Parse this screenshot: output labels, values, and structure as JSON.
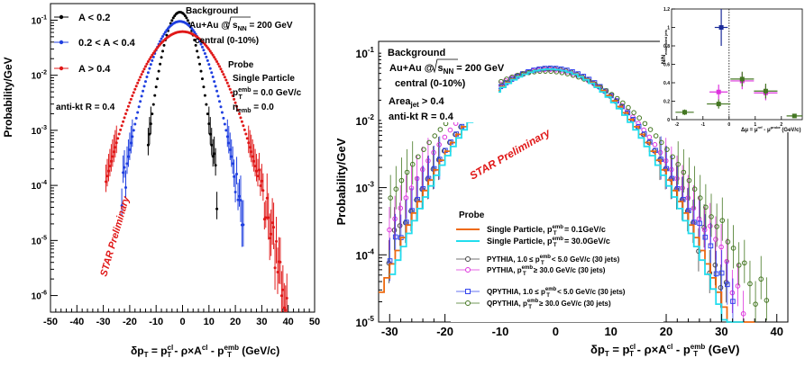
{
  "left_panel": {
    "legend": [
      "A < 0.2",
      "0.2 < A < 0.4",
      "A > 0.4"
    ],
    "legend_colors": [
      "#000000",
      "#1f3fe0",
      "#e01818"
    ],
    "background_title": "Background",
    "system_prefix": "Au+Au @",
    "system_sqrt": "s",
    "system_sub": "NN",
    "system_suffix": " = 200 GeV",
    "centrality": "central (0-10%)",
    "probe_title": "Probe",
    "probe_type": "Single Particle",
    "probe_pt": "p",
    "probe_pt_sup": "emb",
    "probe_pt_sub": "T",
    "probe_pt_val": " = 0.0 GeV/c",
    "probe_eta": "η",
    "probe_eta_sub": "emb",
    "probe_eta_val": " = 0.0",
    "algo": "anti-kt   R = 0.4",
    "watermark": "STAR Preliminary",
    "ylabel": "Probability/GeV",
    "xlabel_parts": [
      "δp",
      "T",
      " = p",
      "cl",
      "T",
      " - ρ×A",
      "cl",
      " - p",
      "emb",
      "T",
      " (GeV/c)"
    ],
    "x_ticks": [
      "-50",
      "-40",
      "-30",
      "-20",
      "-10",
      "0",
      "10",
      "20",
      "30",
      "40",
      "50"
    ],
    "y_ticks": [
      {
        "base": "10",
        "exp": "-1"
      },
      {
        "base": "10",
        "exp": "-2"
      },
      {
        "base": "10",
        "exp": "-3"
      },
      {
        "base": "10",
        "exp": "-4"
      },
      {
        "base": "10",
        "exp": "-5"
      },
      {
        "base": "10",
        "exp": "-6"
      }
    ]
  },
  "right_panel": {
    "background_title": "Background",
    "system_prefix": "Au+Au @",
    "system_sqrt": "s",
    "system_sub": "NN",
    "system_suffix": " = 200 GeV",
    "centrality": "central (0-10%)",
    "area_cut_a": "Area",
    "area_cut_sub": "jet",
    "area_cut_b": " > 0.4",
    "algo": "anti-kt   R = 0.4",
    "watermark": "STAR Preliminary",
    "ylabel": "Probability/GeV",
    "xlabel_parts": [
      "δp",
      "T",
      " = p",
      "cl",
      "T",
      " - ρ×A",
      "cl",
      " - p",
      "emb",
      "T",
      " (GeV)"
    ],
    "x_ticks": [
      "-30",
      "-20",
      "-10",
      "0",
      "10",
      "20",
      "30",
      "40"
    ],
    "y_ticks": [
      {
        "base": "10",
        "exp": "-1"
      },
      {
        "base": "10",
        "exp": "-2"
      },
      {
        "base": "10",
        "exp": "-3"
      },
      {
        "base": "10",
        "exp": "-4"
      },
      {
        "base": "10",
        "exp": "-5"
      }
    ],
    "legend_title": "Probe",
    "legend": [
      {
        "a": "Single Particle, p",
        "sup": "emb",
        "sub": "T",
        "b": " = 0.1GeV/c",
        "color": "#ee6a10",
        "kind": "line"
      },
      {
        "a": "Single Particle, p",
        "sup": "emb",
        "sub": "T",
        "b": " = 30.0GeV/c",
        "color": "#22ddee",
        "kind": "line"
      },
      {
        "a": "PYTHIA, 1.0 ≤  p",
        "sup": "emb",
        "sub": "T",
        "b": " < 5.0 GeV/c (30 jets)",
        "color": "#444444",
        "kind": "open"
      },
      {
        "a": "PYTHIA, p",
        "sup": "emb",
        "sub": "T",
        "b": " ≥ 30.0 GeV/c (30 jets)",
        "color": "#dd33dd",
        "kind": "open"
      },
      {
        "a": "QPYTHIA, 1.0 ≤  p",
        "sup": "emb",
        "sub": "T",
        "b": " < 5.0 GeV/c (30 jets)",
        "color": "#3344ee",
        "kind": "openbox"
      },
      {
        "a": "QPYTHIA, p",
        "sup": "emb",
        "sub": "T",
        "b": " ≥ 30.0 GeV/c (30 jets)",
        "color": "#447722",
        "kind": "open"
      }
    ]
  },
  "inset": {
    "ylabel": "N/N",
    "ylabel_sub": "embedded jets",
    "xlabel": "Δμ = μ",
    "xlabel_sup1": "ref",
    "xlabel_mid": " - μ",
    "xlabel_sup2": "probe",
    "xlabel_end": " (GeV/c)",
    "x_ticks": [
      "-2",
      "-1",
      "0",
      "1",
      "2"
    ],
    "y_ticks": [
      "0",
      "0.2",
      "0.4",
      "0.6",
      "0.8",
      "1",
      "1.2"
    ]
  },
  "chart_data": [
    {
      "type": "scatter",
      "title": "",
      "xlabel": "δpT = pT^cl - ρ×A^cl - pT^emb (GeV/c)",
      "ylabel": "Probability/GeV",
      "xlim": [
        -50,
        50
      ],
      "ylim": [
        5e-07,
        0.2
      ],
      "yscale": "log",
      "grid": false,
      "legend_position": "top-left",
      "series": [
        {
          "name": "A < 0.2",
          "color": "#000000",
          "mean": -1,
          "sigma": 3.6,
          "peak": 0.14,
          "x_range": [
            -13,
            13
          ]
        },
        {
          "name": "0.2 < A < 0.4",
          "color": "#1f3fe0",
          "mean": -1,
          "sigma": 5.8,
          "peak": 0.095,
          "x_range": [
            -23,
            23
          ]
        },
        {
          "name": "A > 0.4",
          "color": "#e01818",
          "mean": 0,
          "sigma": 8.2,
          "peak": 0.062,
          "x_range": [
            -29,
            45
          ]
        }
      ]
    },
    {
      "type": "line",
      "title": "",
      "xlabel": "δpT = pT^cl - ρ×A^cl - pT^emb (GeV)",
      "ylabel": "Probability/GeV",
      "xlim": [
        -32,
        42
      ],
      "ylim": [
        1e-05,
        0.15
      ],
      "yscale": "log",
      "grid": false,
      "legend_position": "bottom-left",
      "series": [
        {
          "name": "Single Particle, pT emb = 0.1GeV/c",
          "color": "#ee6a10",
          "mean": -1,
          "sigma": 7.8,
          "peak": 0.058,
          "x_range": [
            -32,
            36
          ]
        },
        {
          "name": "Single Particle, pT emb = 30.0GeV/c",
          "color": "#22ddee",
          "mean": -1,
          "sigma": 7.6,
          "peak": 0.058,
          "x_range": [
            -30,
            34
          ]
        },
        {
          "name": "PYTHIA, 1.0 ≤ pT emb < 5.0 GeV/c (30 jets)",
          "color": "#444444",
          "mean": -1,
          "sigma": 8.0,
          "peak": 0.059,
          "x_range": [
            -30,
            38
          ]
        },
        {
          "name": "PYTHIA, pT emb ≥ 30.0 GeV/c (30 jets)",
          "color": "#dd33dd",
          "mean": -1.5,
          "sigma": 8.6,
          "peak": 0.057,
          "x_range": [
            -30,
            38
          ]
        },
        {
          "name": "QPYTHIA, 1.0 ≤ pT emb < 5.0 GeV/c (30 jets)",
          "color": "#3344ee",
          "mean": -1,
          "sigma": 8.0,
          "peak": 0.06,
          "x_range": [
            -30,
            38
          ]
        },
        {
          "name": "QPYTHIA, pT emb ≥ 30.0 GeV/c (30 jets)",
          "color": "#447722",
          "mean": -2,
          "sigma": 9.5,
          "peak": 0.054,
          "x_range": [
            -30,
            38
          ]
        }
      ]
    },
    {
      "type": "scatter",
      "title": "",
      "xlabel": "Δμ = μ^ref - μ^probe (GeV/c)",
      "ylabel": "N/N embedded jets",
      "xlim": [
        -2.2,
        2.8
      ],
      "ylim": [
        0,
        1.2
      ],
      "grid": false,
      "series": [
        {
          "name": "",
          "color": "#1a2a99",
          "points": [
            {
              "x": -0.3,
              "y": 1.0,
              "xerr": 0.25,
              "yerr": 0.2
            }
          ]
        },
        {
          "name": "",
          "color": "#dd33dd",
          "points": [
            {
              "x": -0.4,
              "y": 0.3,
              "xerr": 0.35,
              "yerr": 0.08
            },
            {
              "x": 0.5,
              "y": 0.42,
              "xerr": 0.45,
              "yerr": 0.09
            },
            {
              "x": 1.4,
              "y": 0.29,
              "xerr": 0.45,
              "yerr": 0.08
            }
          ]
        },
        {
          "name": "",
          "color": "#447722",
          "points": [
            {
              "x": -1.7,
              "y": 0.08,
              "xerr": 0.35,
              "yerr": 0.03
            },
            {
              "x": -0.4,
              "y": 0.17,
              "xerr": 0.45,
              "yerr": 0.05
            },
            {
              "x": 0.5,
              "y": 0.44,
              "xerr": 0.45,
              "yerr": 0.08
            },
            {
              "x": 1.4,
              "y": 0.31,
              "xerr": 0.45,
              "yerr": 0.08
            },
            {
              "x": 2.5,
              "y": 0.04,
              "xerr": 0.3,
              "yerr": 0.02
            }
          ]
        }
      ]
    }
  ]
}
